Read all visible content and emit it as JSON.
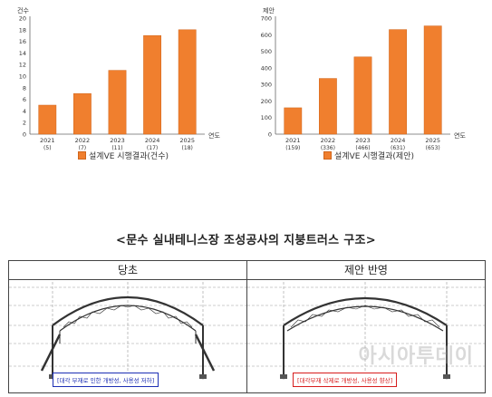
{
  "chart_data": [
    {
      "type": "bar",
      "ylabel": "건수",
      "xlabel": "연도",
      "categories": [
        "2021",
        "2022",
        "2023",
        "2024",
        "2025"
      ],
      "category_sublabels": [
        "(5)",
        "(7)",
        "(11)",
        "(17)",
        "(18)"
      ],
      "values": [
        5,
        7,
        11,
        17,
        18
      ],
      "ylim": [
        0,
        20
      ],
      "yticks": [
        "0",
        "2",
        "4",
        "6",
        "8",
        "10",
        "12",
        "14",
        "16",
        "18",
        "20"
      ],
      "series": [
        {
          "name": "설계VE 시행결과(건수)",
          "values": [
            5,
            7,
            11,
            17,
            18
          ]
        }
      ],
      "legend": "bottom",
      "grid": false,
      "color": "#f07f2e"
    },
    {
      "type": "bar",
      "ylabel": "제안",
      "xlabel": "연도",
      "categories": [
        "2021",
        "2022",
        "2023",
        "2024",
        "2025"
      ],
      "category_sublabels": [
        "(159)",
        "(336)",
        "(466)",
        "(631)",
        "(653)"
      ],
      "values": [
        159,
        336,
        466,
        631,
        653
      ],
      "ylim": [
        0,
        700
      ],
      "yticks": [
        "0",
        "100",
        "200",
        "300",
        "400",
        "500",
        "600",
        "700"
      ],
      "series": [
        {
          "name": "설계VE 시행결과(제안)",
          "values": [
            159,
            336,
            466,
            631,
            653
          ]
        }
      ],
      "legend": "bottom",
      "grid": false,
      "color": "#f07f2e"
    }
  ],
  "section_title": "<문수 실내테니스장 조성공사의 지붕트러스 구조>",
  "comparison": {
    "left_header": "당초",
    "right_header": "제안 반영",
    "left_caption": "[대각 부재로 인한 개방성, 사용성 저하]",
    "right_caption": "[대각부재 삭제로 개방성, 사용성 향상]"
  },
  "watermark": "아시아투데이",
  "colors": {
    "bar": "#f07f2e",
    "caption_blue": "#1d2fb4",
    "caption_red": "#d71d1d",
    "truss_line": "#333333",
    "guide_line": "#9a9a9a"
  }
}
